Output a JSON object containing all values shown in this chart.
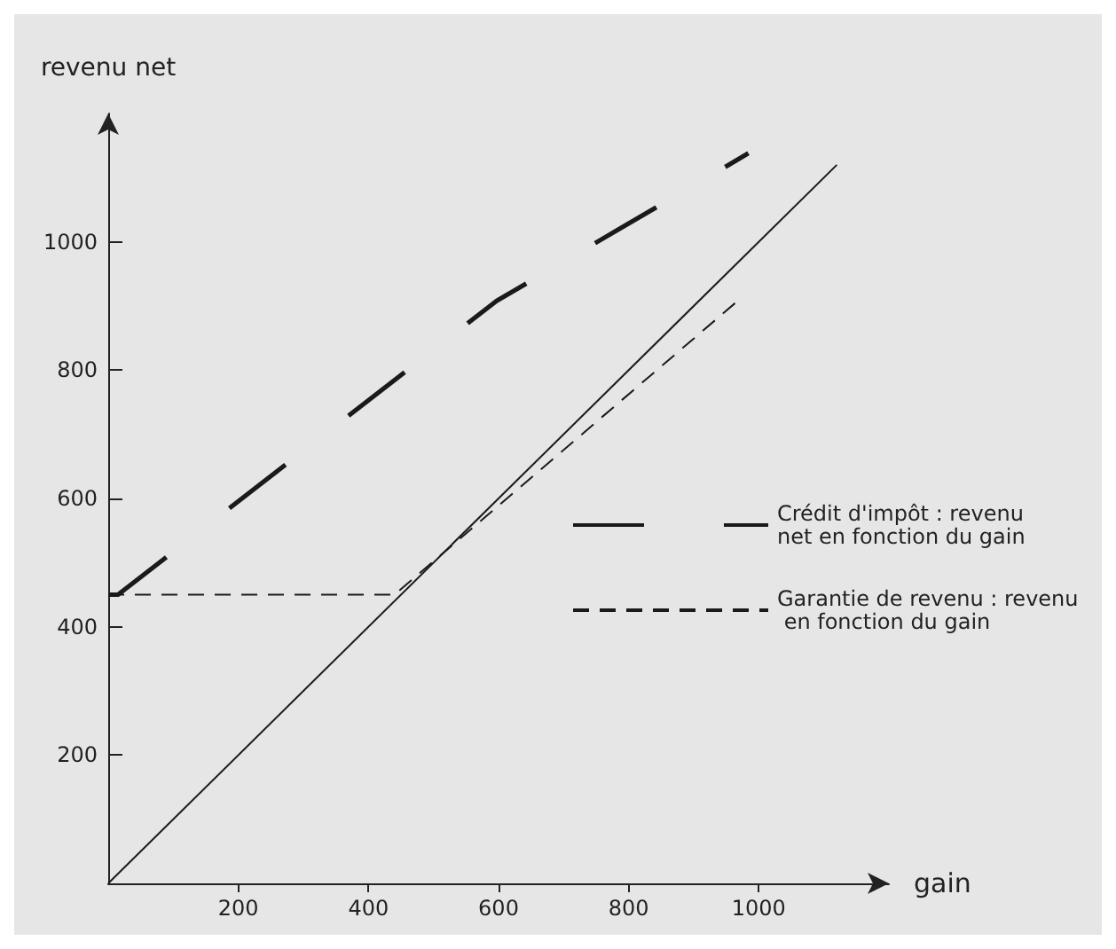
{
  "chart_data": {
    "type": "line",
    "xlabel": "gain",
    "ylabel": "revenu net",
    "xlim": [
      0,
      1200
    ],
    "ylim": [
      0,
      1200
    ],
    "xticks": [
      200,
      400,
      600,
      800,
      1000
    ],
    "yticks": [
      200,
      400,
      600,
      800,
      1000
    ],
    "grid": false,
    "legend": "bottom right",
    "marker": "none",
    "series": [
      {
        "x": [
          0,
          1120
        ],
        "values": [
          0,
          1120
        ],
        "color": "#1a1a1a",
        "line_style": "solid"
      },
      {
        "name": "Crédit d'impôt : revenu net en fonction du gain",
        "x": [
          0,
          15,
          597,
          984
        ],
        "values": [
          450,
          450,
          908,
          1138
        ],
        "color": "#1a1a1a",
        "line_style": "dashed"
      },
      {
        "name": "Garantie de revenu : revenu en fonction du gain",
        "x": [
          0,
          440,
          970
        ],
        "values": [
          450,
          450,
          910
        ],
        "color": "#1a1a1a",
        "line_style": "dashed"
      }
    ]
  }
}
